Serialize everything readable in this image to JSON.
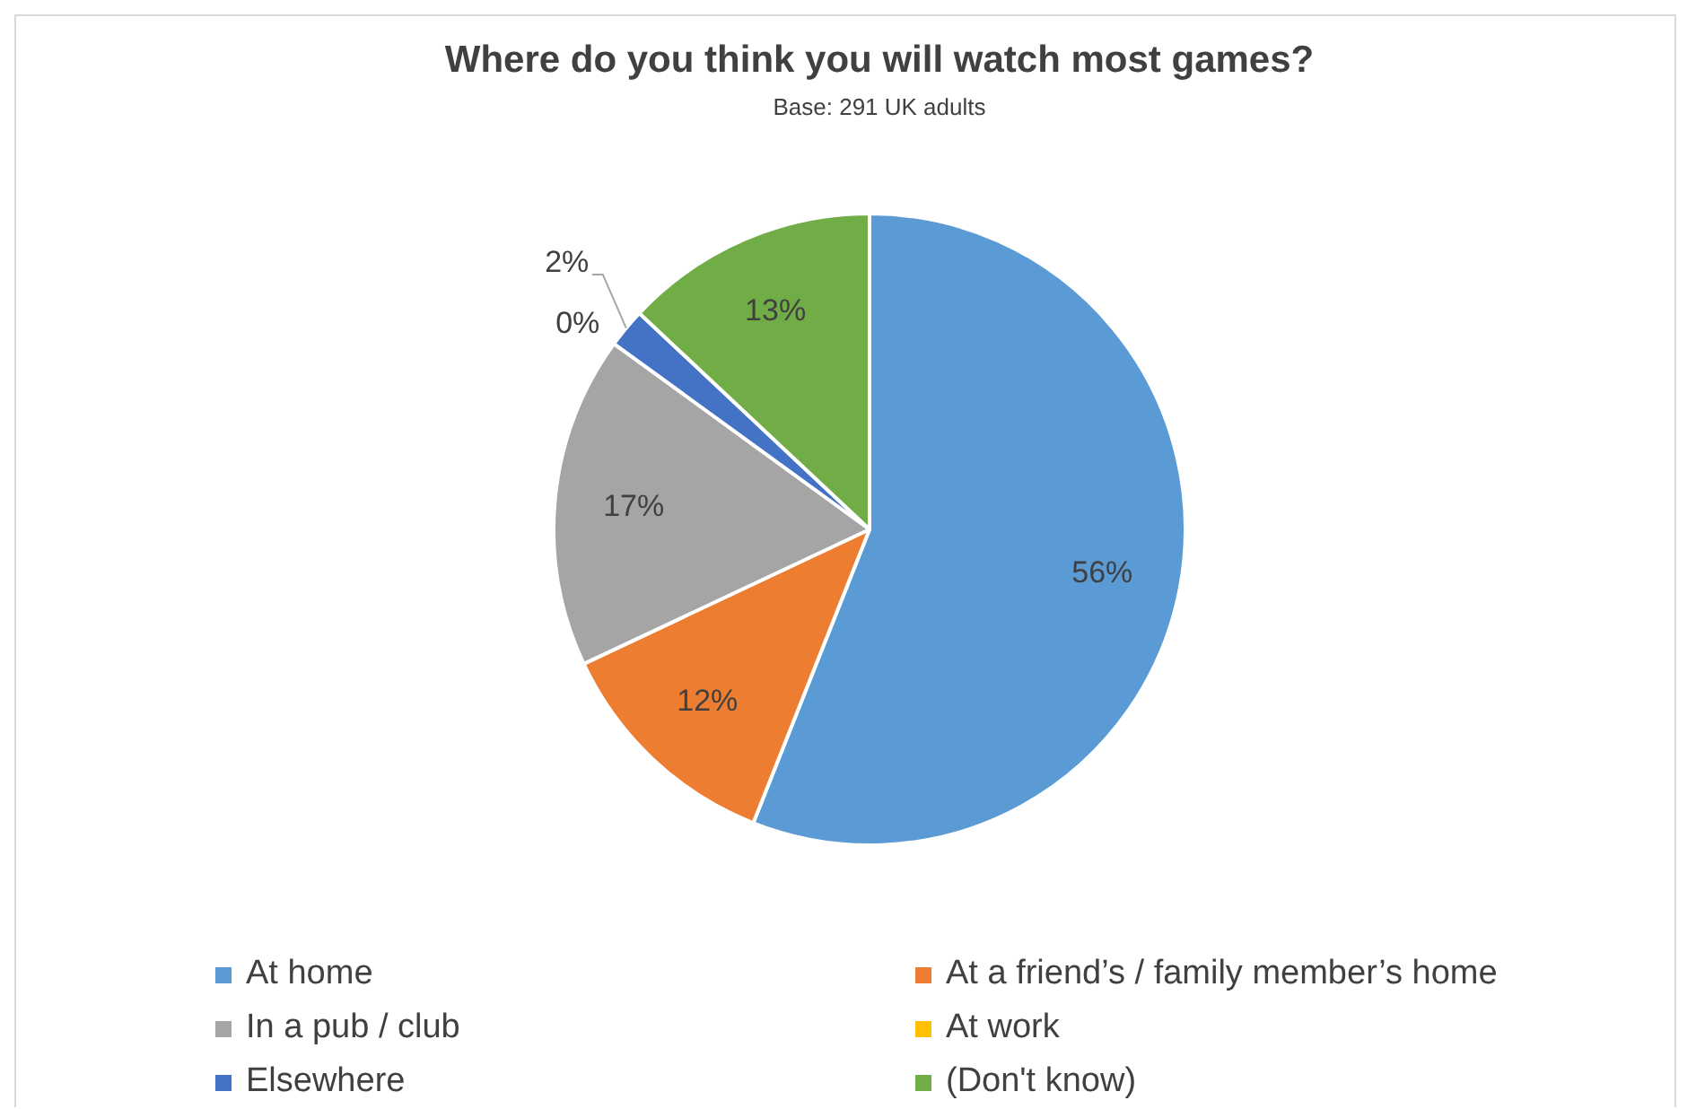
{
  "chart_data": {
    "type": "pie",
    "title": "Where do you think you will watch most games?",
    "subtitle": "Base: 291 UK adults",
    "categories": [
      "At home",
      "At a friend’s / family member’s home",
      "In a pub / club",
      "At work",
      "Elsewhere",
      "(Don't know)"
    ],
    "values": [
      56,
      12,
      17,
      0,
      2,
      13
    ],
    "colors": [
      "#5b9bd5",
      "#ed7d31",
      "#a5a5a5",
      "#ffc000",
      "#4472c4",
      "#70ad47"
    ],
    "value_labels": [
      "56%",
      "12%",
      "17%",
      "0%",
      "2%",
      "13%"
    ],
    "legend": "bottom"
  }
}
